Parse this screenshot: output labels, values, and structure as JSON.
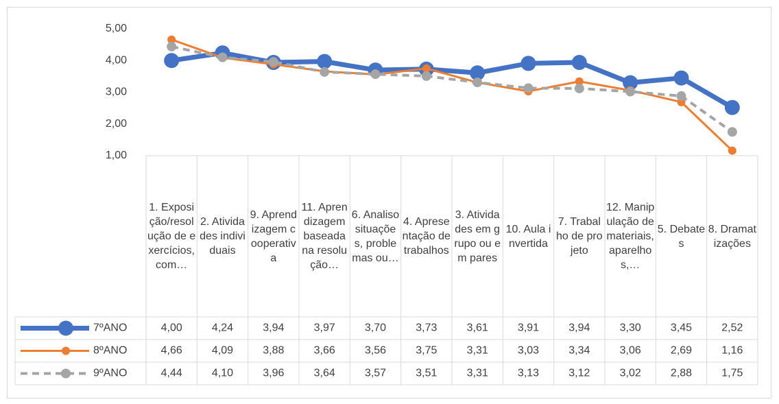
{
  "chart_data": {
    "type": "line",
    "categories": [
      "1. Exposição/resolução de exercícios, com…",
      "2. Atividades individuais",
      "9. Aprendizagem cooperativa",
      "11. Aprendizagem baseada na resolução…",
      "6. Analiso situações, problemas ou…",
      "4. Apresentação de trabalhos",
      "3. Atividades em grupo ou em pares",
      "10. Aula invertida",
      "7. Trabalho de projeto",
      "12. Manipulação de materiais, aparelhos,…",
      "5. Debates",
      "8. Dramatizações"
    ],
    "series": [
      {
        "name": "7ºANO",
        "color": "#4472c4",
        "values": [
          4.0,
          4.24,
          3.94,
          3.97,
          3.7,
          3.73,
          3.61,
          3.91,
          3.94,
          3.3,
          3.45,
          2.52
        ],
        "value_labels": [
          "4,00",
          "4,24",
          "3,94",
          "3,97",
          "3,70",
          "3,73",
          "3,61",
          "3,91",
          "3,94",
          "3,30",
          "3,45",
          "2,52"
        ]
      },
      {
        "name": "8ºANO",
        "color": "#ed7d31",
        "values": [
          4.66,
          4.09,
          3.88,
          3.66,
          3.56,
          3.75,
          3.31,
          3.03,
          3.34,
          3.06,
          2.69,
          1.16
        ],
        "value_labels": [
          "4,66",
          "4,09",
          "3,88",
          "3,66",
          "3,56",
          "3,75",
          "3,31",
          "3,03",
          "3,34",
          "3,06",
          "2,69",
          "1,16"
        ]
      },
      {
        "name": "9ºANO",
        "color": "#a5a5a5",
        "dashed": true,
        "values": [
          4.44,
          4.1,
          3.96,
          3.64,
          3.57,
          3.51,
          3.31,
          3.13,
          3.12,
          3.02,
          2.88,
          1.75
        ],
        "value_labels": [
          "4,44",
          "4,10",
          "3,96",
          "3,64",
          "3,57",
          "3,51",
          "3,31",
          "3,13",
          "3,12",
          "3,02",
          "2,88",
          "1,75"
        ]
      }
    ],
    "ylim": [
      1,
      5
    ],
    "yticks": [
      {
        "value": 1,
        "label": "1,00"
      },
      {
        "value": 2,
        "label": "2,00"
      },
      {
        "value": 3,
        "label": "3,00"
      },
      {
        "value": 4,
        "label": "4,00"
      },
      {
        "value": 5,
        "label": "5,00"
      }
    ],
    "grid": false
  }
}
